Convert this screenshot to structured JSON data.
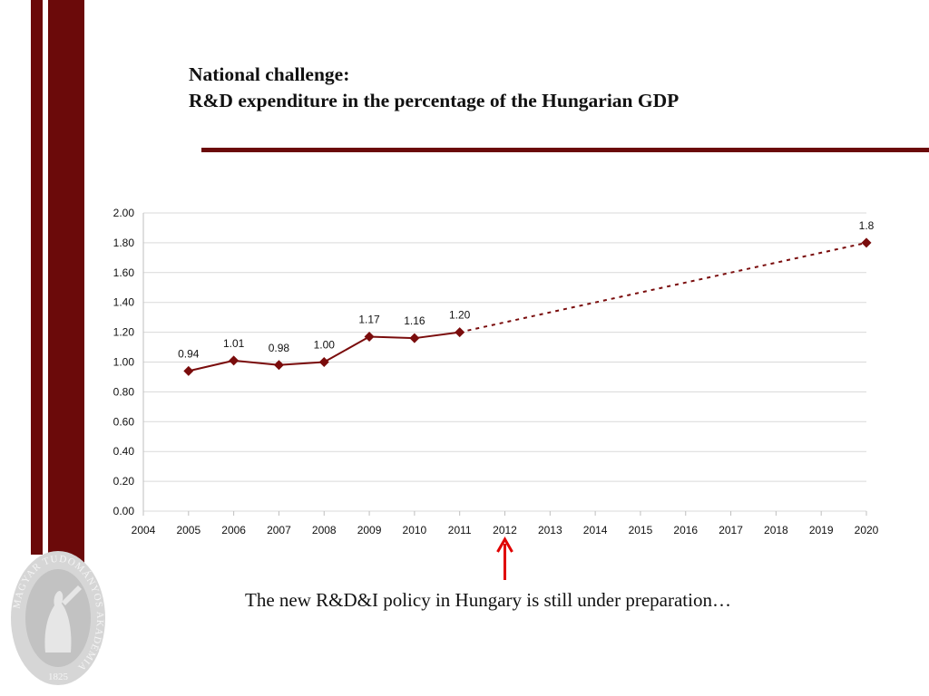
{
  "slide": {
    "title_line1": "National challenge:",
    "title_line2": "R&D expenditure in the percentage of the Hungarian GDP",
    "note": "The new R&D&I policy in Hungary is still under preparation…",
    "seal_text": "MAGYAR TUDOMÁNYOS AKADÉMIA",
    "seal_year": "1825"
  },
  "colors": {
    "brand": "#6b0a0a",
    "series": "#7a0c0c",
    "arrow": "#e00000",
    "grid": "#d9d9d9"
  },
  "chart_data": {
    "type": "line",
    "title": "",
    "xlabel": "",
    "ylabel": "",
    "x_ticks": [
      "2004",
      "2005",
      "2006",
      "2007",
      "2008",
      "2009",
      "2010",
      "2011",
      "2012",
      "2013",
      "2014",
      "2015",
      "2016",
      "2017",
      "2018",
      "2019",
      "2020"
    ],
    "y_ticks": [
      "0.00",
      "0.20",
      "0.40",
      "0.60",
      "0.80",
      "1.00",
      "1.20",
      "1.40",
      "1.60",
      "1.80",
      "2.00"
    ],
    "xlim": [
      2004,
      2020
    ],
    "ylim": [
      0,
      2.0
    ],
    "grid": true,
    "series": [
      {
        "style": "solid-with-diamond-markers",
        "points": [
          {
            "x": 2005,
            "y": 0.94,
            "label": "0.94"
          },
          {
            "x": 2006,
            "y": 1.01,
            "label": "1.01"
          },
          {
            "x": 2007,
            "y": 0.98,
            "label": "0.98"
          },
          {
            "x": 2008,
            "y": 1.0,
            "label": "1.00"
          },
          {
            "x": 2009,
            "y": 1.17,
            "label": "1.17"
          },
          {
            "x": 2010,
            "y": 1.16,
            "label": "1.16"
          },
          {
            "x": 2011,
            "y": 1.2,
            "label": "1.20"
          }
        ]
      },
      {
        "style": "dotted-projection",
        "points": [
          {
            "x": 2011,
            "y": 1.2,
            "label": ""
          },
          {
            "x": 2020,
            "y": 1.8,
            "label": "1.8"
          }
        ]
      }
    ],
    "annotation": {
      "type": "arrow",
      "target_x": 2012
    }
  }
}
